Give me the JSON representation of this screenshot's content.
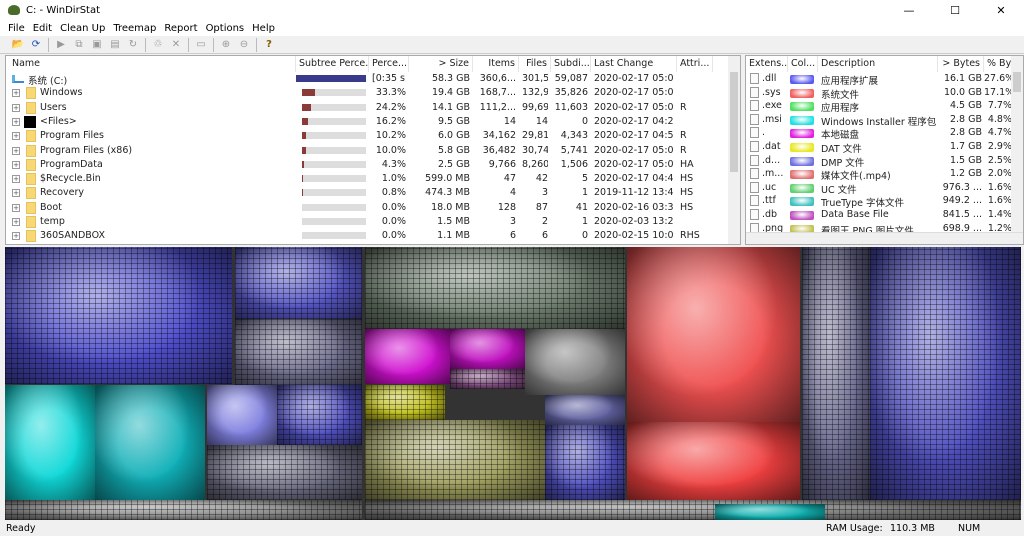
{
  "window": {
    "title": "C: - WinDirStat",
    "minimize": "—",
    "maximize": "☐",
    "close": "✕"
  },
  "menu": [
    "File",
    "Edit",
    "Clean Up",
    "Treemap",
    "Report",
    "Options",
    "Help"
  ],
  "toolbar": [
    "open-icon",
    "refresh-icon",
    "|",
    "play-icon",
    "copy-icon",
    "explorer-icon",
    "cmd-icon",
    "refresh-selected-icon",
    "|",
    "recycle-icon",
    "delete-icon",
    "|",
    "properties-icon",
    "|",
    "zoom-in-icon",
    "zoom-out-icon",
    "|",
    "help-icon"
  ],
  "dir_list": {
    "columns": [
      "Name",
      "Subtree Perce...",
      "Perce...",
      "> Size",
      "Items",
      "Files",
      "Subdi...",
      "Last Change",
      "Attri..."
    ],
    "root": {
      "name": "系统 (C:)",
      "subtree": 1.0,
      "percent": "[0:35 s]",
      "size": "58.3 GB",
      "items": "360,6...",
      "files": "301,5...",
      "subdirs": "59,087",
      "last_change": "2020-02-17  05:0...",
      "attr": ""
    },
    "rows": [
      {
        "name": "Windows",
        "subtree": 0.333,
        "percent": "33.3%",
        "size": "19.4 GB",
        "items": "168,7...",
        "files": "132,9...",
        "subdirs": "35,826",
        "last_change": "2020-02-17  05:0...",
        "attr": ""
      },
      {
        "name": "Users",
        "subtree": 0.242,
        "percent": "24.2%",
        "size": "14.1 GB",
        "items": "111,2...",
        "files": "99,692",
        "subdirs": "11,603",
        "last_change": "2020-02-17  05:0...",
        "attr": "R"
      },
      {
        "name": "<Files>",
        "subtree": 0.162,
        "percent": "16.2%",
        "size": "9.5 GB",
        "items": "14",
        "files": "14",
        "subdirs": "0",
        "last_change": "2020-02-17  04:2...",
        "attr": "",
        "files_node": true
      },
      {
        "name": "Program Files",
        "subtree": 0.102,
        "percent": "10.2%",
        "size": "6.0 GB",
        "items": "34,162",
        "files": "29,819",
        "subdirs": "4,343",
        "last_change": "2020-02-17  04:5...",
        "attr": "R"
      },
      {
        "name": "Program Files (x86)",
        "subtree": 0.1,
        "percent": "10.0%",
        "size": "5.8 GB",
        "items": "36,482",
        "files": "30,741",
        "subdirs": "5,741",
        "last_change": "2020-02-17  05:0...",
        "attr": "R"
      },
      {
        "name": "ProgramData",
        "subtree": 0.043,
        "percent": "4.3%",
        "size": "2.5 GB",
        "items": "9,766",
        "files": "8,260",
        "subdirs": "1,506",
        "last_change": "2020-02-17  05:0...",
        "attr": "HA"
      },
      {
        "name": "$Recycle.Bin",
        "subtree": 0.01,
        "percent": "1.0%",
        "size": "599.0 MB",
        "items": "47",
        "files": "42",
        "subdirs": "5",
        "last_change": "2020-02-17  04:4...",
        "attr": "HS"
      },
      {
        "name": "Recovery",
        "subtree": 0.008,
        "percent": "0.8%",
        "size": "474.3 MB",
        "items": "4",
        "files": "3",
        "subdirs": "1",
        "last_change": "2019-11-12  13:4...",
        "attr": "HS"
      },
      {
        "name": "Boot",
        "subtree": 0.0,
        "percent": "0.0%",
        "size": "18.0 MB",
        "items": "128",
        "files": "87",
        "subdirs": "41",
        "last_change": "2020-02-16  03:3...",
        "attr": "HS"
      },
      {
        "name": "temp",
        "subtree": 0.0,
        "percent": "0.0%",
        "size": "1.5 MB",
        "items": "3",
        "files": "2",
        "subdirs": "1",
        "last_change": "2020-02-03  13:2...",
        "attr": ""
      },
      {
        "name": "360SANDBOX",
        "subtree": 0.0,
        "percent": "0.0%",
        "size": "1.1 MB",
        "items": "6",
        "files": "6",
        "subdirs": "0",
        "last_change": "2020-02-15  10:0...",
        "attr": "RHS"
      }
    ]
  },
  "ext_list": {
    "columns": [
      "Extens...",
      "Col...",
      "Description",
      "> Bytes",
      "% By..."
    ],
    "rows": [
      {
        "ext": ".dll",
        "color": "#5a5af0",
        "desc": "应用程序扩展",
        "bytes": "16.1 GB",
        "pct": "27.6%"
      },
      {
        "ext": ".sys",
        "color": "#f06060",
        "desc": "系统文件",
        "bytes": "10.0 GB",
        "pct": "17.1%"
      },
      {
        "ext": ".exe",
        "color": "#50e060",
        "desc": "应用程序",
        "bytes": "4.5 GB",
        "pct": "7.7%"
      },
      {
        "ext": ".msi",
        "color": "#20e0e0",
        "desc": "Windows Installer 程序包",
        "bytes": "2.8 GB",
        "pct": "4.8%"
      },
      {
        "ext": ".",
        "color": "#e020e0",
        "desc": "本地磁盘",
        "bytes": "2.8 GB",
        "pct": "4.7%"
      },
      {
        "ext": ".dat",
        "color": "#e8e820",
        "desc": "DAT 文件",
        "bytes": "1.7 GB",
        "pct": "2.9%"
      },
      {
        "ext": ".d...",
        "color": "#7070e0",
        "desc": "DMP 文件",
        "bytes": "1.5 GB",
        "pct": "2.5%"
      },
      {
        "ext": ".m...",
        "color": "#e07070",
        "desc": "媒体文件(.mp4)",
        "bytes": "1.2 GB",
        "pct": "2.0%"
      },
      {
        "ext": ".uc",
        "color": "#60d070",
        "desc": "UC 文件",
        "bytes": "976.3 ...",
        "pct": "1.6%"
      },
      {
        "ext": ".ttf",
        "color": "#40c0c0",
        "desc": "TrueType 字体文件",
        "bytes": "949.2 ...",
        "pct": "1.6%"
      },
      {
        "ext": ".db",
        "color": "#c050c0",
        "desc": "Data Base File",
        "bytes": "841.5 ...",
        "pct": "1.4%"
      },
      {
        "ext": ".png",
        "color": "#c0c050",
        "desc": "看图王 PNG 图片文件",
        "bytes": "698.9 ...",
        "pct": "1.2%"
      }
    ]
  },
  "status": {
    "left": "Ready",
    "ram_label": "RAM Usage:",
    "ram_value": "110.3 MB",
    "num": "NUM"
  }
}
